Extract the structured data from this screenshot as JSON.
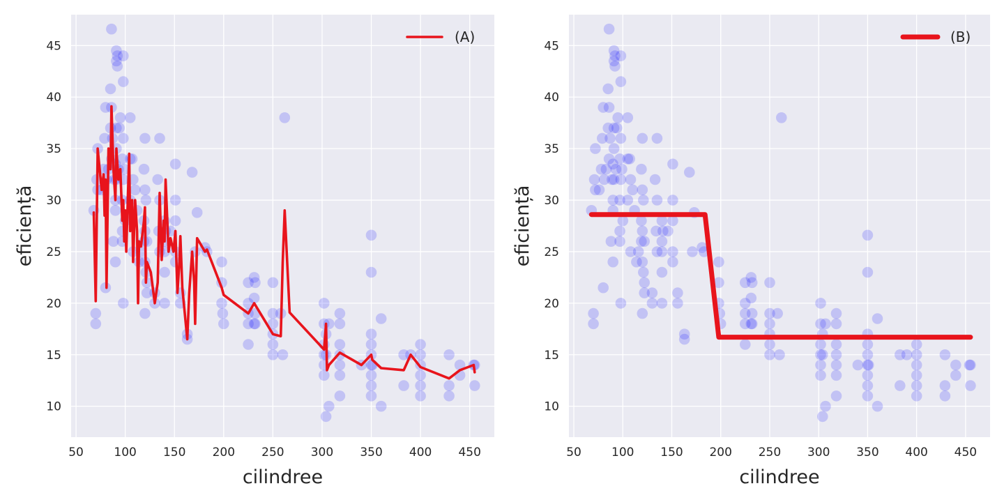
{
  "chart_data": [
    {
      "type": "line",
      "xlabel": "cilindree",
      "ylabel": "eficiență",
      "xlim": [
        45,
        475
      ],
      "ylim": [
        7,
        48
      ],
      "xticks": [
        50,
        100,
        150,
        200,
        250,
        300,
        350,
        400,
        450
      ],
      "yticks": [
        10,
        15,
        20,
        25,
        30,
        35,
        40,
        45
      ],
      "grid": true,
      "legend_position": "top-right",
      "scatter": {
        "color": "#0000ff",
        "alpha": 0.17,
        "points": [
          [
            68,
            29
          ],
          [
            70,
            19
          ],
          [
            70,
            18
          ],
          [
            71,
            32
          ],
          [
            72,
            35
          ],
          [
            72,
            31
          ],
          [
            76,
            31
          ],
          [
            78,
            33
          ],
          [
            79,
            36
          ],
          [
            80,
            21.5
          ],
          [
            80,
            39
          ],
          [
            81,
            32
          ],
          [
            83,
            33
          ],
          [
            85,
            40.8
          ],
          [
            85,
            37
          ],
          [
            86,
            46.6
          ],
          [
            86,
            34
          ],
          [
            86,
            39
          ],
          [
            87,
            36
          ],
          [
            88,
            26
          ],
          [
            89,
            32
          ],
          [
            90,
            30
          ],
          [
            90,
            33.5
          ],
          [
            90,
            29
          ],
          [
            90,
            24
          ],
          [
            91,
            35
          ],
          [
            91,
            37
          ],
          [
            91,
            43.5
          ],
          [
            91,
            44.5
          ],
          [
            91,
            32
          ],
          [
            92,
            43
          ],
          [
            92,
            44
          ],
          [
            93,
            33
          ],
          [
            94,
            37
          ],
          [
            95,
            38
          ],
          [
            97,
            26
          ],
          [
            97,
            27
          ],
          [
            97,
            30
          ],
          [
            97,
            34
          ],
          [
            98,
            36
          ],
          [
            98,
            41.5
          ],
          [
            98,
            20
          ],
          [
            98,
            44
          ],
          [
            98,
            32
          ],
          [
            99,
            33
          ],
          [
            100,
            28
          ],
          [
            105,
            38
          ],
          [
            105,
            34
          ],
          [
            105,
            30
          ],
          [
            107,
            34
          ],
          [
            108,
            25
          ],
          [
            108,
            32
          ],
          [
            110,
            31
          ],
          [
            112,
            29
          ],
          [
            114,
            24
          ],
          [
            116,
            25
          ],
          [
            119,
            26
          ],
          [
            119,
            28
          ],
          [
            119,
            33
          ],
          [
            120,
            19
          ],
          [
            120,
            24
          ],
          [
            120,
            27
          ],
          [
            120,
            31
          ],
          [
            120,
            36
          ],
          [
            121,
            23
          ],
          [
            121,
            30
          ],
          [
            122,
            21
          ],
          [
            122,
            22
          ],
          [
            122,
            26
          ],
          [
            130,
            20
          ],
          [
            130,
            21
          ],
          [
            133,
            32
          ],
          [
            134,
            27
          ],
          [
            135,
            30
          ],
          [
            135,
            25
          ],
          [
            135,
            36
          ],
          [
            140,
            23
          ],
          [
            140,
            25
          ],
          [
            140,
            26
          ],
          [
            140,
            28
          ],
          [
            140,
            20
          ],
          [
            141,
            27
          ],
          [
            146,
            27
          ],
          [
            151,
            24
          ],
          [
            151,
            28
          ],
          [
            151,
            30
          ],
          [
            151,
            25
          ],
          [
            151,
            33.5
          ],
          [
            156,
            20
          ],
          [
            156,
            21
          ],
          [
            163,
            17
          ],
          [
            163,
            16.5
          ],
          [
            168,
            32.7
          ],
          [
            171,
            25
          ],
          [
            173,
            28.8
          ],
          [
            181,
            25.4
          ],
          [
            183,
            25
          ],
          [
            198,
            20
          ],
          [
            198,
            22
          ],
          [
            198,
            24
          ],
          [
            199,
            19
          ],
          [
            200,
            18
          ],
          [
            225,
            16
          ],
          [
            225,
            18
          ],
          [
            225,
            19
          ],
          [
            225,
            20
          ],
          [
            225,
            22
          ],
          [
            231,
            18
          ],
          [
            231,
            20.5
          ],
          [
            231,
            22.5
          ],
          [
            232,
            19
          ],
          [
            232,
            22
          ],
          [
            232,
            18
          ],
          [
            250,
            15
          ],
          [
            250,
            16
          ],
          [
            250,
            17
          ],
          [
            250,
            18
          ],
          [
            250,
            19
          ],
          [
            250,
            22
          ],
          [
            258,
            19
          ],
          [
            260,
            15
          ],
          [
            262,
            38
          ],
          [
            302,
            13
          ],
          [
            302,
            14
          ],
          [
            302,
            15
          ],
          [
            302,
            16
          ],
          [
            302,
            18
          ],
          [
            302,
            20
          ],
          [
            304,
            9
          ],
          [
            304,
            15
          ],
          [
            304,
            17
          ],
          [
            307,
            10
          ],
          [
            307,
            18
          ],
          [
            318,
            11
          ],
          [
            318,
            13
          ],
          [
            318,
            14
          ],
          [
            318,
            15
          ],
          [
            318,
            16
          ],
          [
            318,
            18
          ],
          [
            318,
            19
          ],
          [
            340,
            14
          ],
          [
            350,
            11
          ],
          [
            350,
            12
          ],
          [
            350,
            13
          ],
          [
            350,
            14
          ],
          [
            350,
            15
          ],
          [
            350,
            16
          ],
          [
            350,
            17
          ],
          [
            350,
            26.6
          ],
          [
            350,
            23
          ],
          [
            351,
            14
          ],
          [
            360,
            10
          ],
          [
            360,
            18.5
          ],
          [
            383,
            12
          ],
          [
            383,
            15
          ],
          [
            390,
            15
          ],
          [
            400,
            11
          ],
          [
            400,
            12
          ],
          [
            400,
            13
          ],
          [
            400,
            14
          ],
          [
            400,
            15
          ],
          [
            400,
            16
          ],
          [
            429,
            11
          ],
          [
            429,
            12
          ],
          [
            429,
            15
          ],
          [
            440,
            13
          ],
          [
            440,
            14
          ],
          [
            454,
            14
          ],
          [
            455,
            12
          ],
          [
            455,
            14
          ]
        ]
      },
      "series": [
        {
          "name": "(A)",
          "color": "#e8141c",
          "x": [
            68,
            70,
            72,
            76,
            78,
            79,
            80,
            81,
            83,
            85,
            86,
            88,
            90,
            91,
            93,
            95,
            97,
            98,
            99,
            100,
            101,
            104,
            105,
            107,
            108,
            110,
            112,
            113,
            114,
            116,
            119,
            120,
            121,
            122,
            126,
            130,
            133,
            135,
            137,
            139,
            140,
            141,
            144,
            146,
            149,
            151,
            153,
            155,
            156,
            158,
            163,
            165,
            168,
            170,
            171,
            173,
            181,
            183,
            198,
            200,
            225,
            231,
            250,
            258,
            260,
            262,
            267,
            302,
            304,
            305,
            307,
            318,
            340,
            350,
            351,
            360,
            383,
            390,
            400,
            429,
            440,
            454,
            455
          ],
          "y": [
            28.8,
            20.2,
            35,
            31,
            32.5,
            28.5,
            32,
            21.5,
            35,
            33,
            39.1,
            33,
            30,
            35,
            32,
            33,
            28,
            30,
            26,
            29,
            25,
            34.5,
            27,
            30,
            24,
            30,
            27,
            20,
            26,
            25.5,
            28,
            29.3,
            22,
            24,
            23,
            20,
            22,
            30.7,
            24.2,
            28,
            26,
            32,
            25,
            26.3,
            25,
            27,
            21,
            24,
            26.5,
            21.5,
            16.5,
            21,
            25,
            22,
            18,
            26.3,
            25,
            25.2,
            21.5,
            20.8,
            19,
            20,
            17,
            16.8,
            24,
            29,
            19.1,
            15.5,
            18,
            13.5,
            14,
            15.2,
            14,
            15,
            14.5,
            13.7,
            13.5,
            15,
            13.8,
            12.7,
            13.5,
            14,
            13.3
          ]
        },
        {
          "name": "(B)",
          "color": "#e8141c",
          "x": [
            68,
            184,
            198,
            455
          ],
          "y": [
            28.6,
            28.6,
            16.7,
            16.7
          ]
        }
      ],
      "legend_label": "(A)",
      "draw_series": [
        0
      ]
    },
    {
      "type": "line",
      "xlabel": "cilindree",
      "ylabel": "eficiență",
      "xlim": [
        45,
        475
      ],
      "ylim": [
        7,
        48
      ],
      "xticks": [
        50,
        100,
        150,
        200,
        250,
        300,
        350,
        400,
        450
      ],
      "yticks": [
        10,
        15,
        20,
        25,
        30,
        35,
        40,
        45
      ],
      "grid": true,
      "legend_position": "top-right",
      "legend_label": "(B)",
      "draw_series": [
        1
      ]
    }
  ]
}
